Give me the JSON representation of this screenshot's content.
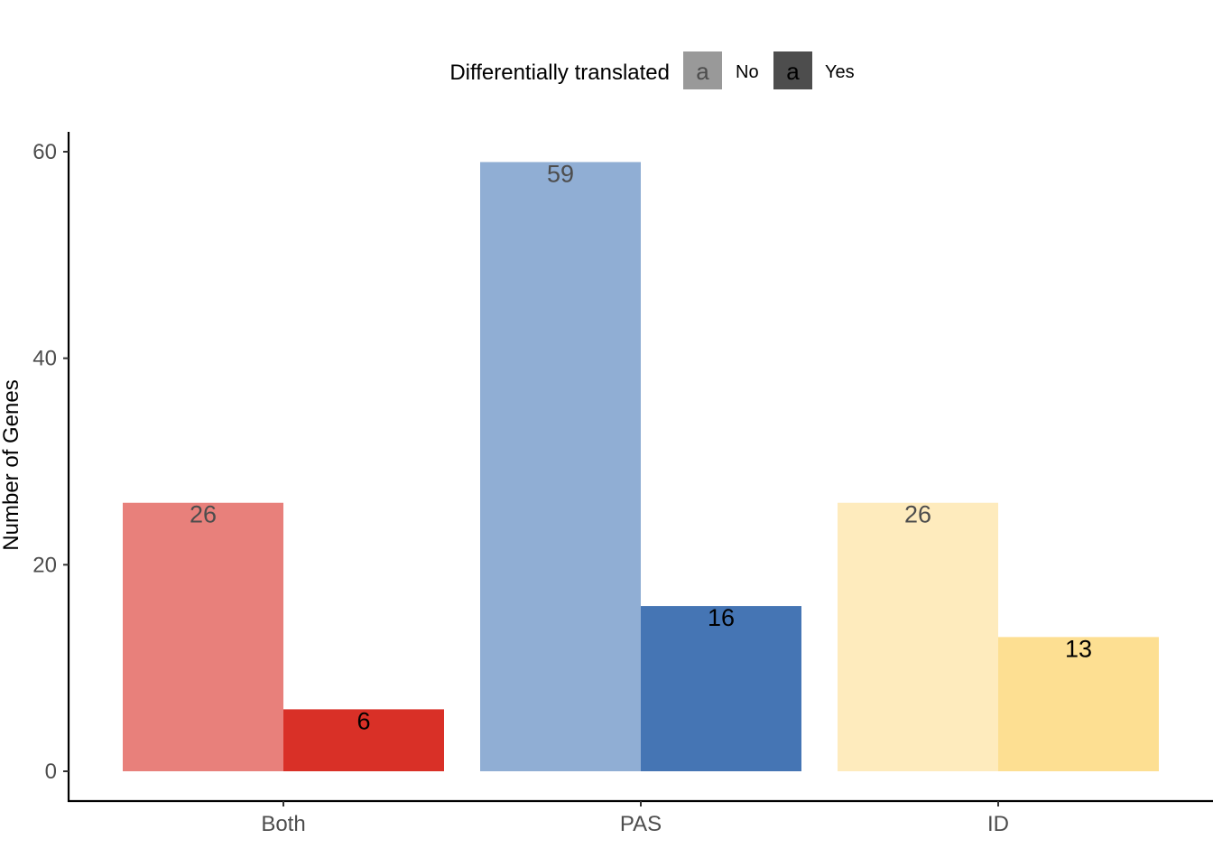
{
  "chart_data": {
    "type": "bar",
    "categories": [
      "Both",
      "PAS",
      "ID"
    ],
    "ylabel": "Number of Genes",
    "xlabel": "",
    "ylim": [
      0,
      60
    ],
    "yticks": [
      0,
      20,
      40,
      60
    ],
    "grid": false,
    "legend": {
      "title": "Differentially translated",
      "placement": "top",
      "key_glyph": "a",
      "entries": [
        {
          "label": "No",
          "color": "#999999",
          "glyph_color": "#4d4d4d"
        },
        {
          "label": "Yes",
          "color": "#4d4d4d",
          "glyph_color": "#000000"
        }
      ]
    },
    "series": [
      {
        "values": [
          26,
          59,
          26
        ],
        "colors": [
          "#e8807b",
          "#90aed4",
          "#feebbd"
        ],
        "label_color": "#4d4d4d"
      },
      {
        "values": [
          6,
          16,
          13
        ],
        "colors": [
          "#d93027",
          "#4575b4",
          "#fddf92"
        ],
        "label_color": "#000000"
      }
    ]
  }
}
